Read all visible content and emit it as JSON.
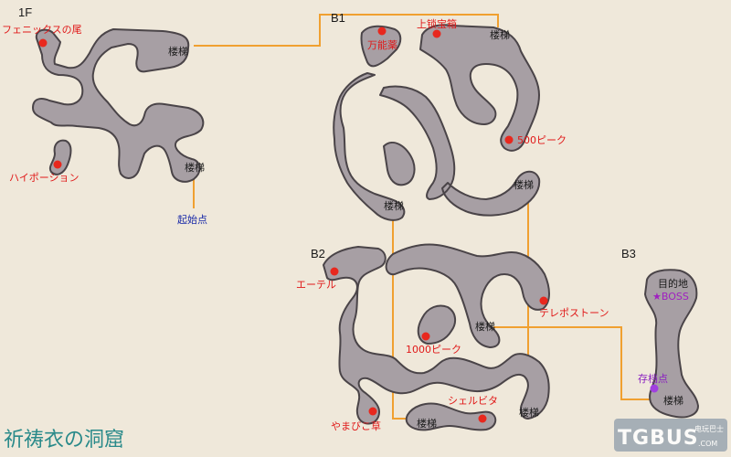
{
  "map_title": "祈祷衣の洞窟",
  "floors": {
    "f1": "1F",
    "b1": "B1",
    "b2": "B2",
    "b3": "B3"
  },
  "labels": {
    "phoenix_tail": "フェニックスの尾",
    "high_potion": "ハイポーション",
    "start_point": "起始点",
    "stairs": "楼梯",
    "cure_all": "万能薬",
    "upper_chest": "上锁宝箱",
    "gil_500": "500ピーク",
    "ether": "エーテル",
    "teleport_stone": "テレポストーン",
    "gil_1000": "1000ピーク",
    "echo_herbs": "やまびこ草",
    "shell_something": "シェルビタ",
    "destination": "目的地",
    "boss": "★BOSS",
    "save_point": "存档点"
  },
  "watermark": {
    "brand": "TGBUS",
    "domain": ".COM",
    "tagline": "电玩巴士"
  },
  "colors": {
    "background": "#efe8da",
    "cave": "#a79fa4",
    "route": "#f0a030",
    "item_marker": "#e8281e",
    "save_marker": "#a040e0",
    "title": "#2a8a8a"
  }
}
